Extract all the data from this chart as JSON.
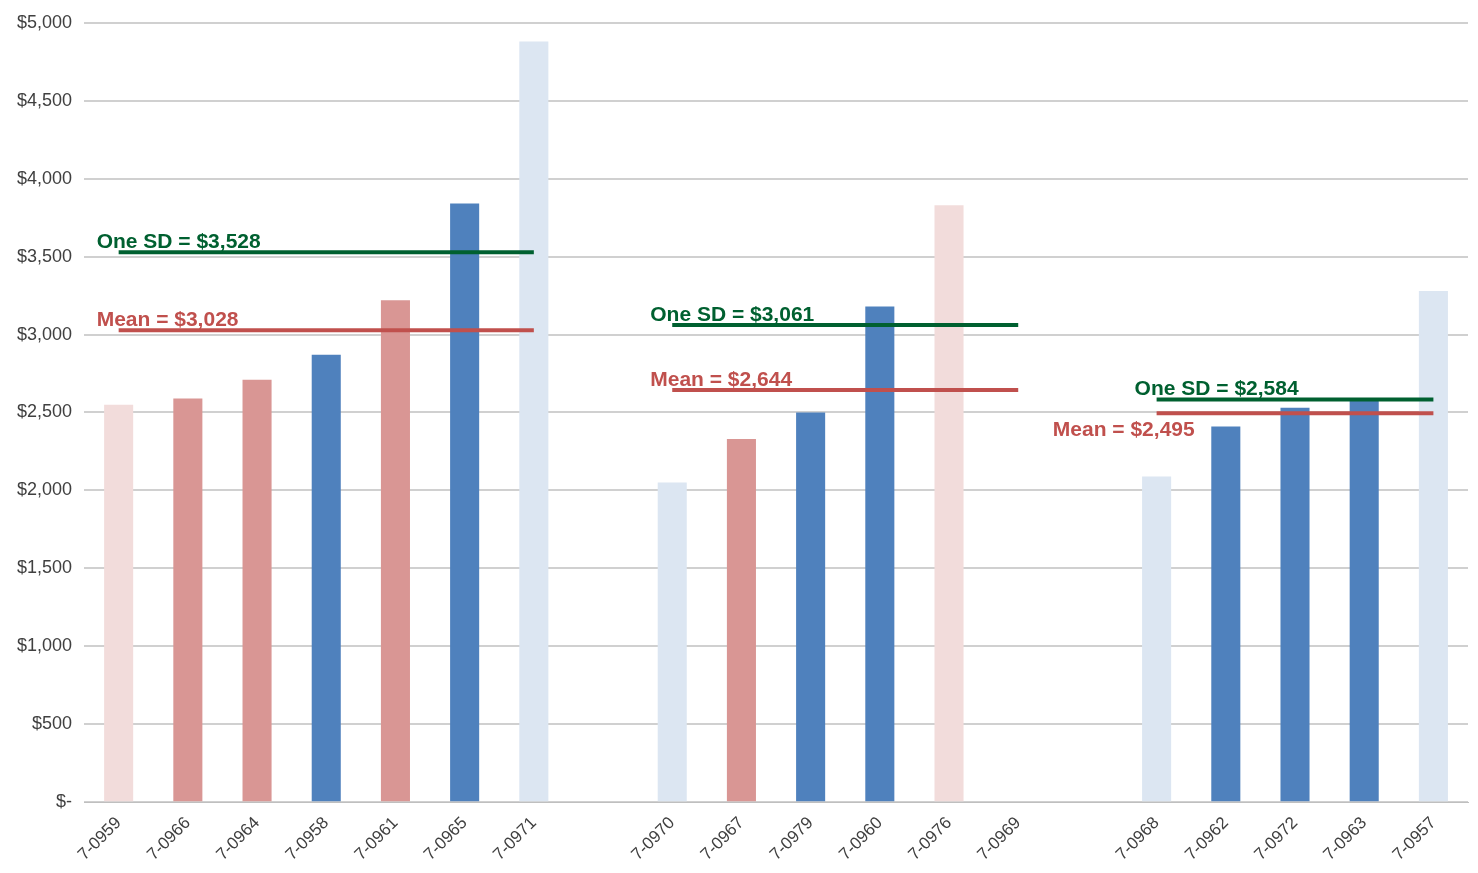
{
  "chart_data": {
    "type": "bar",
    "categories": [
      "7-0959",
      "7-0966",
      "7-0964",
      "7-0958",
      "7-0961",
      "7-0965",
      "7-0971",
      null,
      "7-0970",
      "7-0967",
      "7-0979",
      "7-0960",
      "7-0976",
      "7-0969",
      null,
      "7-0968",
      "7-0962",
      "7-0972",
      "7-0963",
      "7-0957"
    ],
    "series": [
      {
        "values": [
          2550,
          2590,
          2710,
          2870,
          3220,
          3840,
          4880,
          null,
          2050,
          2330,
          2500,
          3180,
          3830,
          0,
          null,
          2090,
          2410,
          2530,
          2580,
          3280
        ],
        "colors": [
          "#f2dcdb",
          "#d99694",
          "#d99694",
          "#4f81bd",
          "#d99694",
          "#4f81bd",
          "#dce6f2",
          null,
          "#dce6f2",
          "#d99694",
          "#4f81bd",
          "#4f81bd",
          "#f2dcdb",
          "#dce6f2",
          null,
          "#dce6f2",
          "#4f81bd",
          "#4f81bd",
          "#4f81bd",
          "#dce6f2"
        ]
      },
      {
        "type": "line",
        "color": "#006030",
        "values": [
          3528,
          3528,
          3528,
          3528,
          3528,
          3528,
          3528,
          null,
          null,
          null,
          null,
          null,
          null,
          null,
          null,
          null,
          null,
          null,
          null,
          null
        ]
      },
      {
        "type": "line",
        "color": "#c0504d",
        "values": [
          3028,
          3028,
          3028,
          3028,
          3028,
          3028,
          3028,
          null,
          null,
          null,
          null,
          null,
          null,
          null,
          null,
          null,
          null,
          null,
          null,
          null
        ]
      },
      {
        "type": "line",
        "color": "#006030",
        "values": [
          null,
          null,
          null,
          null,
          null,
          null,
          null,
          null,
          3061,
          3061,
          3061,
          3061,
          3061,
          3061,
          null,
          null,
          null,
          null,
          null,
          null
        ]
      },
      {
        "type": "line",
        "color": "#c0504d",
        "values": [
          null,
          null,
          null,
          null,
          null,
          null,
          null,
          null,
          2644,
          2644,
          2644,
          2644,
          2644,
          2644,
          null,
          null,
          null,
          null,
          null,
          null
        ]
      },
      {
        "type": "line",
        "color": "#006030",
        "values": [
          null,
          null,
          null,
          null,
          null,
          null,
          null,
          null,
          null,
          null,
          null,
          null,
          null,
          null,
          null,
          2584,
          2584,
          2584,
          2584,
          2584
        ]
      },
      {
        "type": "line",
        "color": "#c0504d",
        "values": [
          null,
          null,
          null,
          null,
          null,
          null,
          null,
          null,
          null,
          null,
          null,
          null,
          null,
          null,
          null,
          2495,
          2495,
          2495,
          2495,
          2495
        ]
      }
    ],
    "ylim": [
      0,
      5000
    ],
    "yticks": [
      {
        "value": 0,
        "label": "$-"
      },
      {
        "value": 500,
        "label": "$500"
      },
      {
        "value": 1000,
        "label": "$1,000"
      },
      {
        "value": 1500,
        "label": "$1,500"
      },
      {
        "value": 2000,
        "label": "$2,000"
      },
      {
        "value": 2500,
        "label": "$2,500"
      },
      {
        "value": 3000,
        "label": "$3,000"
      },
      {
        "value": 3500,
        "label": "$3,500"
      },
      {
        "value": 4000,
        "label": "$4,000"
      },
      {
        "value": 4500,
        "label": "$4,500"
      },
      {
        "value": 5000,
        "label": "$5,000"
      }
    ],
    "annotations": [
      {
        "text": "One SD = $3,528",
        "x": "7-0959",
        "y": 3528
      },
      {
        "text": "Mean = $3,028",
        "x": "7-0959",
        "y": 3028
      },
      {
        "text": "One SD = $3,061",
        "x": "7-0970",
        "y": 3061
      },
      {
        "text": "Mean = $2,644",
        "x": "7-0970",
        "y": 2644
      },
      {
        "text": "One SD = $2,584",
        "x": "7-0968",
        "y": 2584
      },
      {
        "text": "Mean = $2,495",
        "x": "7-0968",
        "y": 2495
      }
    ],
    "grid": "y",
    "legend": false,
    "marker": "none",
    "line_style": "solid"
  }
}
